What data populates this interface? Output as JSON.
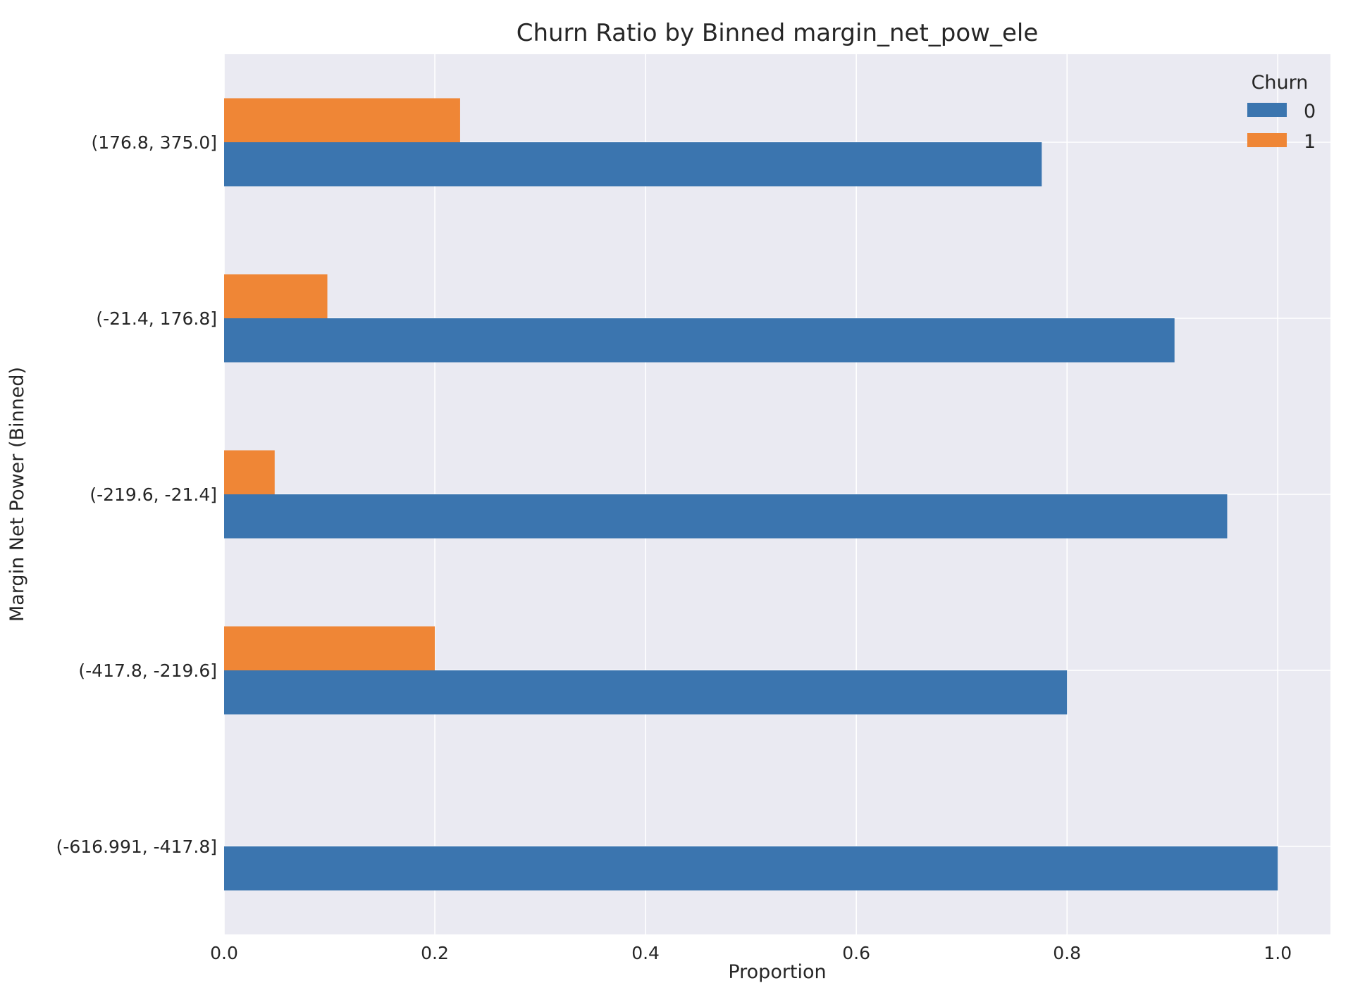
{
  "chart_data": {
    "type": "bar",
    "orientation": "horizontal",
    "title": "Churn Ratio by Binned margin_net_pow_ele",
    "xlabel": "Proportion",
    "ylabel": "Margin Net Power (Binned)",
    "xlim": [
      0.0,
      1.05
    ],
    "xticks": [
      "0.0",
      "0.2",
      "0.4",
      "0.6",
      "0.8",
      "1.0"
    ],
    "categories": [
      "(-616.991, -417.8]",
      "(-417.8, -219.6]",
      "(-219.6, -21.4]",
      "(-21.4, 176.8]",
      "(176.8, 375.0]"
    ],
    "series": [
      {
        "name": "0",
        "color": "#3b75af",
        "values": [
          1.0,
          0.8,
          0.952,
          0.902,
          0.776
        ]
      },
      {
        "name": "1",
        "color": "#ef8636",
        "values": [
          0.0,
          0.2,
          0.048,
          0.098,
          0.224
        ]
      }
    ],
    "legend": {
      "title": "Churn",
      "position": "top-right"
    },
    "grid": true,
    "background": "#eaeaf2"
  }
}
